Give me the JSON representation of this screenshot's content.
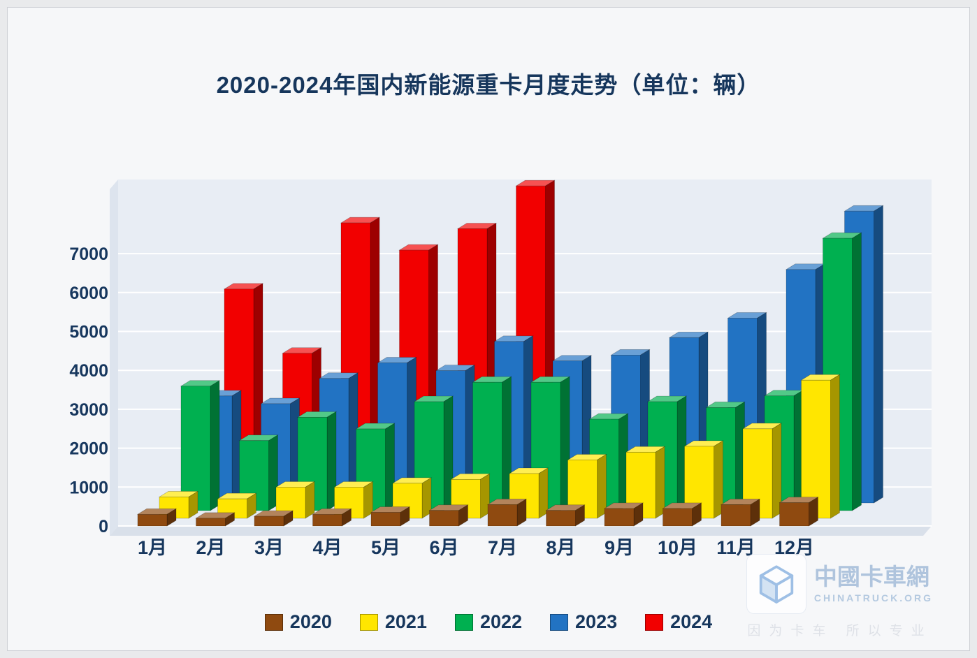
{
  "chart_data": {
    "type": "bar",
    "projection": "3d-clustered",
    "title": "2020-2024年国内新能源重卡月度走势（单位：辆）",
    "unit": "辆",
    "categories": [
      "1月",
      "2月",
      "3月",
      "4月",
      "5月",
      "6月",
      "7月",
      "8月",
      "9月",
      "10月",
      "11月",
      "12月"
    ],
    "series": [
      {
        "name": "2020",
        "color": "#8F4A10",
        "values": [
          300,
          200,
          250,
          300,
          350,
          400,
          550,
          400,
          450,
          450,
          550,
          600
        ]
      },
      {
        "name": "2021",
        "color": "#FFE600",
        "values": [
          550,
          500,
          800,
          800,
          900,
          1000,
          1150,
          1500,
          1700,
          1850,
          2300,
          3550
        ]
      },
      {
        "name": "2022",
        "color": "#00B050",
        "values": [
          3200,
          1800,
          2400,
          2100,
          2800,
          3300,
          3300,
          2350,
          2800,
          2650,
          2950,
          7000
        ]
      },
      {
        "name": "2023",
        "color": "#2273C3",
        "values": [
          2750,
          2550,
          3200,
          3600,
          3400,
          4150,
          3650,
          3800,
          4250,
          4750,
          6000,
          7500
        ]
      },
      {
        "name": "2024",
        "color": "#F20000",
        "values": [
          5300,
          3650,
          7000,
          6300,
          6850,
          7950,
          null,
          null,
          null,
          null,
          null,
          null
        ]
      }
    ],
    "xlabel": "",
    "ylabel": "",
    "ylim": [
      0,
      7000
    ],
    "ytick_step": 1000,
    "ytick_labels": [
      "0",
      "1000",
      "2000",
      "3000",
      "4000",
      "5000",
      "6000",
      "7000"
    ],
    "grid": true,
    "legend_position": "bottom",
    "wall_color": "#E8EDF4",
    "gridline_color": "#FFFFFF",
    "axis_text_color": "#17375E"
  },
  "watermark": {
    "brand_cn": "中國卡車網",
    "brand_en": "CHINATRUCK.ORG",
    "tagline": "因为卡车 所以专业",
    "logo_color": "#8FB6E2"
  }
}
